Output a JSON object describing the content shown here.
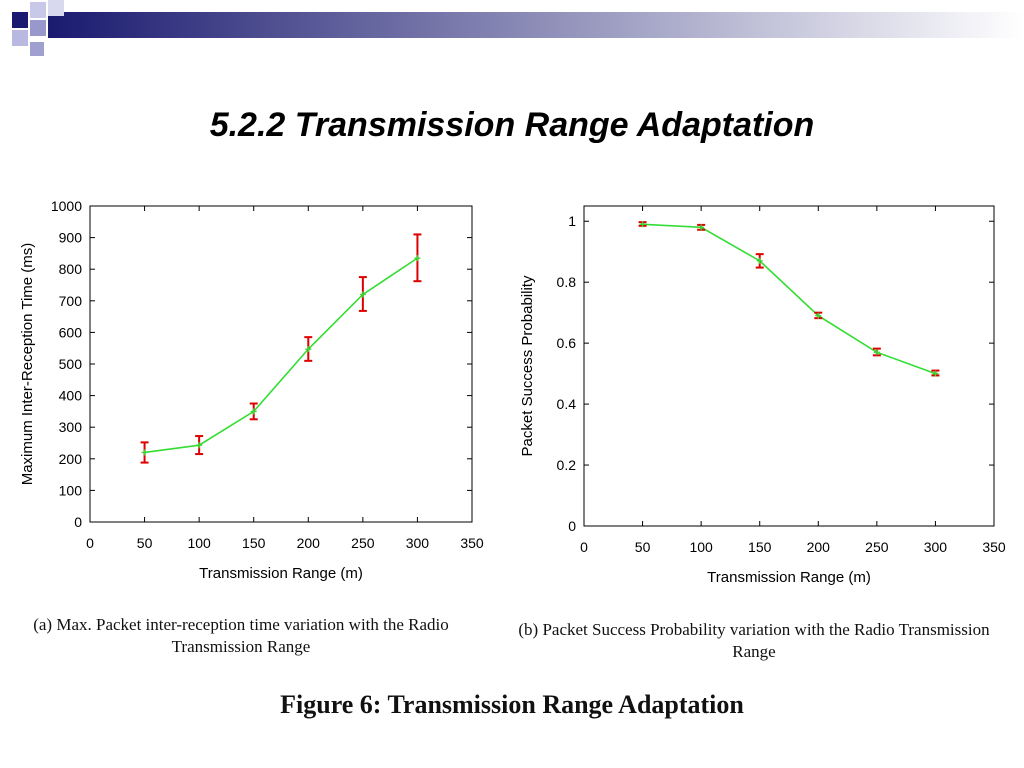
{
  "slide": {
    "title": "5.2.2  Transmission Range Adaptation",
    "figure_caption": "Figure 6:  Transmission Range Adaptation",
    "colors": {
      "series_line": "#33dd33",
      "error_bar": "#dd0000",
      "header_gradient_start": "#1a1a70",
      "header_gradient_end": "#ffffff"
    }
  },
  "chart_data": [
    {
      "type": "line",
      "caption": "(a) Max. Packet inter-reception time variation with the Radio Transmission Range",
      "xlabel": "Transmission Range (m)",
      "ylabel": "Maximum Inter-Reception Time (ms)",
      "xlim": [
        0,
        350
      ],
      "ylim": [
        0,
        1000
      ],
      "xticks": [
        0,
        50,
        100,
        150,
        200,
        250,
        300,
        350
      ],
      "yticks": [
        0,
        100,
        200,
        300,
        400,
        500,
        600,
        700,
        800,
        900,
        1000
      ],
      "grid": false,
      "x": [
        50,
        100,
        150,
        200,
        250,
        300
      ],
      "y": [
        220,
        243,
        350,
        547,
        720,
        835
      ],
      "error_low": [
        188,
        215,
        325,
        510,
        668,
        762
      ],
      "error_high": [
        252,
        272,
        375,
        585,
        775,
        910
      ]
    },
    {
      "type": "line",
      "caption": "(b) Packet Success Probability variation with the Radio Transmission Range",
      "xlabel": "Transmission Range (m)",
      "ylabel": "Packet Success Probability",
      "xlim": [
        0,
        350
      ],
      "ylim": [
        0,
        1.05
      ],
      "xticks": [
        0,
        50,
        100,
        150,
        200,
        250,
        300,
        350
      ],
      "yticks": [
        0,
        0.2,
        0.4,
        0.6,
        0.8,
        1
      ],
      "ytick_labels": [
        "0",
        "0.2",
        "0.4",
        "0.6",
        "0.8",
        "1"
      ],
      "grid": false,
      "x": [
        50,
        100,
        150,
        200,
        250,
        300
      ],
      "y": [
        0.99,
        0.98,
        0.87,
        0.69,
        0.57,
        0.5
      ],
      "error_low": [
        0.985,
        0.972,
        0.848,
        0.682,
        0.56,
        0.494
      ],
      "error_high": [
        0.997,
        0.988,
        0.892,
        0.7,
        0.582,
        0.51
      ]
    }
  ]
}
